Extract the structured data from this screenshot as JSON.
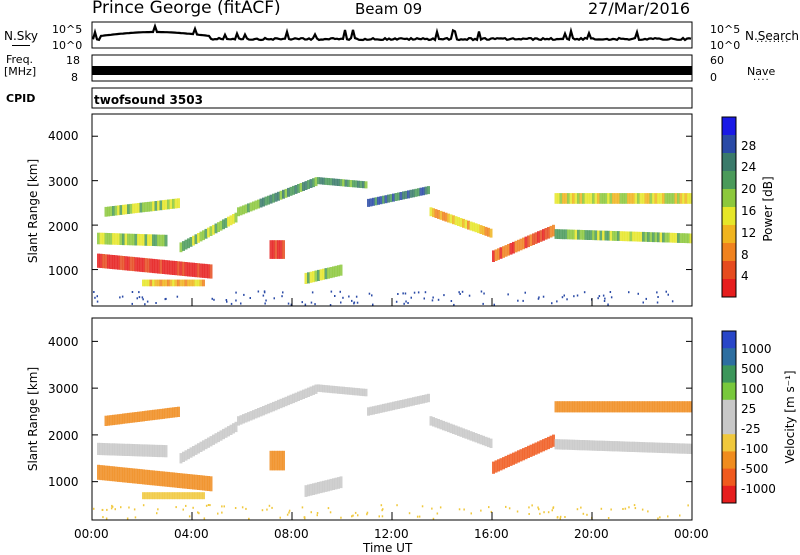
{
  "header": {
    "station": "Prince George (fitACF)",
    "beam": "Beam 09",
    "date": "27/Mar/2016"
  },
  "top_panels": {
    "nsky_label": "N.Sky",
    "nsearch_label": "N.Search",
    "noise_ticks": [
      "10^5",
      "10^0"
    ],
    "freq_label": "Freq.",
    "freq_unit": "[MHz]",
    "freq_ticks": [
      "18",
      "8"
    ],
    "nave_label": "Nave",
    "nave_ticks": [
      "60",
      "0"
    ],
    "cpid_label": "CPID",
    "cpid_value": "twofsound 3503"
  },
  "chart_data": [
    {
      "type": "heatmap",
      "name": "power",
      "ylabel": "Slant Range [km]",
      "ylim": [
        180,
        4500
      ],
      "yticks": [
        "4000",
        "3000",
        "2000",
        "1000"
      ],
      "xlim_hours": [
        0,
        24
      ],
      "colorbar_label": "Power [dB]",
      "colorbar_ticks": [
        "28",
        "24",
        "20",
        "16",
        "12",
        "8",
        "4"
      ],
      "colorbar_colors": [
        "#1a1ae6",
        "#2a4aa6",
        "#3a7a6a",
        "#4a9a5a",
        "#8cc83c",
        "#e6e628",
        "#f0b41e",
        "#f0821e",
        "#e64b1e",
        "#e61e1e"
      ]
    },
    {
      "type": "heatmap",
      "name": "velocity",
      "ylabel": "Slant Range [km]",
      "ylim": [
        180,
        4500
      ],
      "yticks": [
        "4000",
        "3000",
        "2000",
        "1000"
      ],
      "xlim_hours": [
        0,
        24
      ],
      "colorbar_label": "Velocity [m s⁻¹]",
      "colorbar_ticks": [
        "1000",
        "500",
        "100",
        "25",
        "-25",
        "-100",
        "-500",
        "-1000"
      ],
      "colorbar_colors": [
        "#2846c8",
        "#2d6ea0",
        "#3c965a",
        "#78c83c",
        "#c8c8c8",
        "#c8c8c8",
        "#f0c83c",
        "#f08c1e",
        "#f05a1e",
        "#e61e1e"
      ]
    }
  ],
  "xaxis": {
    "ticks": [
      "00:00",
      "04:00",
      "08:00",
      "12:00",
      "16:00",
      "20:00",
      "00:00"
    ],
    "label": "Time UT"
  }
}
